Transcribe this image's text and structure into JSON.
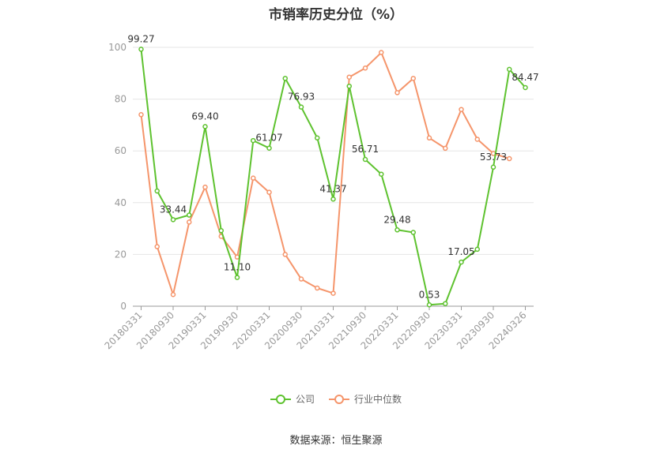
{
  "chart_data": {
    "type": "line",
    "title": "市销率历史分位（%）",
    "source": "数据来源：恒生聚源",
    "ylim": [
      0,
      100
    ],
    "yticks": [
      0,
      20,
      40,
      60,
      80,
      100
    ],
    "grid": true,
    "legend_position": "bottom",
    "x_tick_labels": [
      "20180331",
      "20180930",
      "20190331",
      "20190930",
      "20200331",
      "20200930",
      "20210331",
      "20210930",
      "20220331",
      "20220930",
      "20230331",
      "20230930",
      "20240326"
    ],
    "series": [
      {
        "name": "公司",
        "color": "#5ec22f",
        "values": [
          99.27,
          44.5,
          33.44,
          35.2,
          69.4,
          29.2,
          11.1,
          64.0,
          61.07,
          88.0,
          76.93,
          65.0,
          41.37,
          85.0,
          56.71,
          51.0,
          29.48,
          28.5,
          0.53,
          1.0,
          17.05,
          22.0,
          53.73,
          91.5,
          84.47
        ]
      },
      {
        "name": "行业中位数",
        "color": "#f5956b",
        "values": [
          74.0,
          23.0,
          4.5,
          32.5,
          46.0,
          27.0,
          19.0,
          49.5,
          44.0,
          20.0,
          10.5,
          7.0,
          5.0,
          88.5,
          92.0,
          98.0,
          82.5,
          88.0,
          65.0,
          61.0,
          76.0,
          64.5,
          59.0,
          57.0
        ]
      }
    ],
    "data_labels": [
      {
        "series": 0,
        "index": 0,
        "text": "99.27"
      },
      {
        "series": 0,
        "index": 2,
        "text": "33.44"
      },
      {
        "series": 0,
        "index": 4,
        "text": "69.40"
      },
      {
        "series": 0,
        "index": 6,
        "text": "11.10"
      },
      {
        "series": 0,
        "index": 8,
        "text": "61.07"
      },
      {
        "series": 0,
        "index": 10,
        "text": "76.93"
      },
      {
        "series": 0,
        "index": 12,
        "text": "41.37"
      },
      {
        "series": 0,
        "index": 14,
        "text": "56.71"
      },
      {
        "series": 0,
        "index": 16,
        "text": "29.48"
      },
      {
        "series": 0,
        "index": 18,
        "text": "0.53"
      },
      {
        "series": 0,
        "index": 20,
        "text": "17.05"
      },
      {
        "series": 0,
        "index": 22,
        "text": "53.73"
      },
      {
        "series": 0,
        "index": 24,
        "text": "84.47"
      }
    ]
  }
}
